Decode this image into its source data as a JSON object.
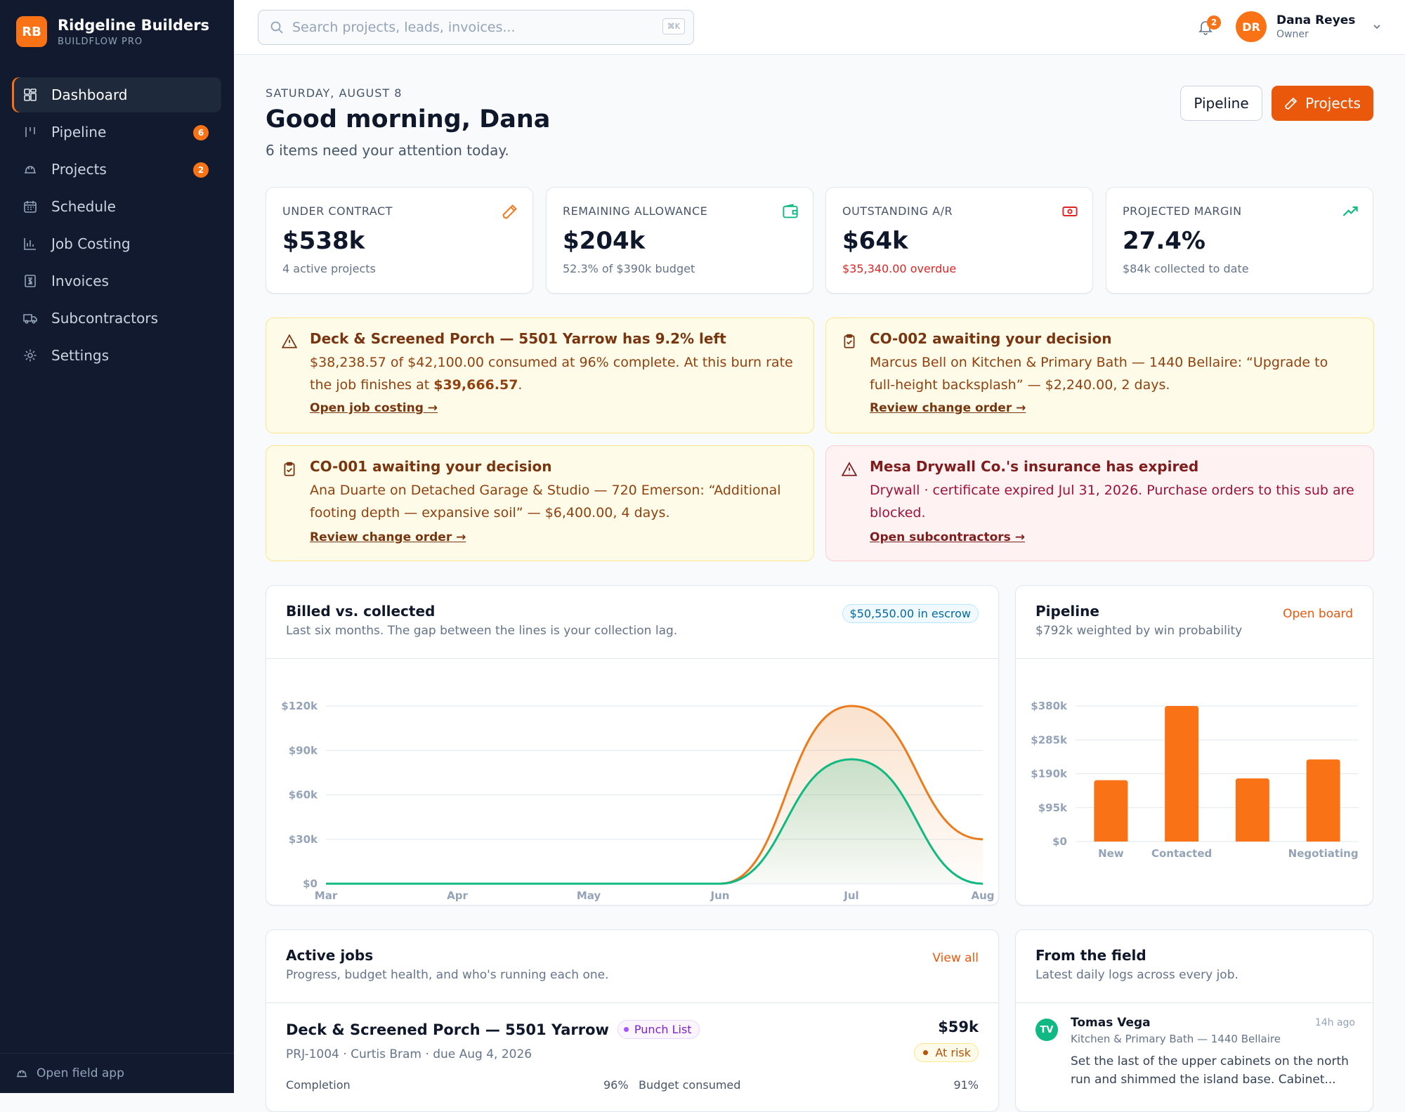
{
  "brand": {
    "initials": "RB",
    "name": "Ridgeline Builders",
    "product": "BUILDFLOW PRO"
  },
  "nav": {
    "items": [
      {
        "label": "Dashboard",
        "icon": "dashboard-icon",
        "active": true
      },
      {
        "label": "Pipeline",
        "icon": "pipeline-icon",
        "badge": "6"
      },
      {
        "label": "Projects",
        "icon": "hardhat-icon",
        "badge": "2"
      },
      {
        "label": "Schedule",
        "icon": "calendar-icon"
      },
      {
        "label": "Job Costing",
        "icon": "bar-chart-icon"
      },
      {
        "label": "Invoices",
        "icon": "receipt-icon"
      },
      {
        "label": "Subcontractors",
        "icon": "truck-icon"
      },
      {
        "label": "Settings",
        "icon": "gear-icon"
      }
    ],
    "footer": "Open field app"
  },
  "topbar": {
    "search_placeholder": "Search projects, leads, invoices...",
    "shortcut": "⌘K",
    "notifications": "2",
    "user": {
      "initials": "DR",
      "name": "Dana Reyes",
      "role": "Owner"
    }
  },
  "header": {
    "date": "SATURDAY, AUGUST 8",
    "greeting": "Good morning, Dana",
    "attention": "6 items need your attention today.",
    "pipeline_button": "Pipeline",
    "projects_button": "Projects"
  },
  "kpis": [
    {
      "label": "UNDER CONTRACT",
      "value": "$538k",
      "sub": "4 active projects",
      "icon": "hammer-icon",
      "color": "#f97316"
    },
    {
      "label": "REMAINING ALLOWANCE",
      "value": "$204k",
      "sub": "52.3% of $390k budget",
      "icon": "wallet-icon",
      "color": "#10b981"
    },
    {
      "label": "OUTSTANDING A/R",
      "value": "$64k",
      "sub": "$35,340.00 overdue",
      "icon": "cash-icon",
      "color": "#dc2626"
    },
    {
      "label": "PROJECTED MARGIN",
      "value": "27.4%",
      "sub": "$84k collected to date",
      "icon": "trending-up-icon",
      "color": "#10b981"
    }
  ],
  "alerts": [
    {
      "title": "Deck & Screened Porch — 5501 Yarrow has 9.2% left",
      "body_pre": "$38,238.57 of $42,100.00 consumed at 96% complete. At this burn rate the job finishes at ",
      "body_strong": "$39,666.57",
      "body_post": ".",
      "link": "Open job costing"
    },
    {
      "title": "CO-002 awaiting your decision",
      "body": "Marcus Bell on Kitchen & Primary Bath — 1440 Bellaire: “Upgrade to full-height backsplash” — $2,240.00, 2 days.",
      "link": "Review change order"
    },
    {
      "title": "CO-001 awaiting your decision",
      "body": "Ana Duarte on Detached Garage & Studio — 720 Emerson: “Additional footing depth — expansive soil” — $6,400.00, 4 days.",
      "link": "Review change order"
    },
    {
      "title": "Mesa Drywall Co.'s insurance has expired",
      "body": "Drywall · certificate expired Jul 31, 2026. Purchase orders to this sub are blocked.",
      "link": "Open subcontractors"
    }
  ],
  "billed": {
    "title": "Billed vs. collected",
    "subtitle": "Last six months. The gap between the lines is your collection lag.",
    "escrow": "$50,550.00 in escrow"
  },
  "pipeline_card": {
    "title": "Pipeline",
    "subtitle": "$792k weighted by win probability",
    "link": "Open board"
  },
  "chart_data": [
    {
      "type": "area",
      "categories": [
        "Mar",
        "Apr",
        "May",
        "Jun",
        "Jul",
        "Aug"
      ],
      "yticks": [
        "$0",
        "$30k",
        "$60k",
        "$90k",
        "$120k"
      ],
      "ylim": [
        0,
        120000
      ],
      "series": [
        {
          "values": [
            0,
            0,
            0,
            0,
            120000,
            30000
          ],
          "color": "#ea7c1e"
        },
        {
          "values": [
            0,
            0,
            0,
            0,
            84000,
            0
          ],
          "color": "#10b981"
        }
      ]
    },
    {
      "type": "bar",
      "categories": [
        "New",
        "Contacted",
        "",
        "Negotiating"
      ],
      "values": [
        172000,
        380000,
        177000,
        230000
      ],
      "yticks": [
        "$0",
        "$95k",
        "$190k",
        "$285k",
        "$380k"
      ],
      "ylim": [
        0,
        380000
      ],
      "color": "#f97316"
    }
  ],
  "active_jobs": {
    "title": "Active jobs",
    "subtitle": "Progress, budget health, and who's running each one.",
    "link": "View all",
    "job": {
      "title": "Deck & Screened Porch — 5501 Yarrow",
      "stage": "Punch List",
      "meta": "PRJ-1004 · Curtis Bram · due Aug 4, 2026",
      "amount": "$59k",
      "risk": "At risk",
      "completion_label": "Completion",
      "completion_value": "96%",
      "budget_label": "Budget consumed",
      "budget_value": "91%"
    }
  },
  "field": {
    "title": "From the field",
    "subtitle": "Latest daily logs across every job.",
    "entry": {
      "initials": "TV",
      "name": "Tomas Vega",
      "time": "14h ago",
      "job": "Kitchen & Primary Bath — 1440 Bellaire",
      "note": "Set the last of the upper cabinets on the north run and shimmed the island base. Cabinet..."
    }
  }
}
